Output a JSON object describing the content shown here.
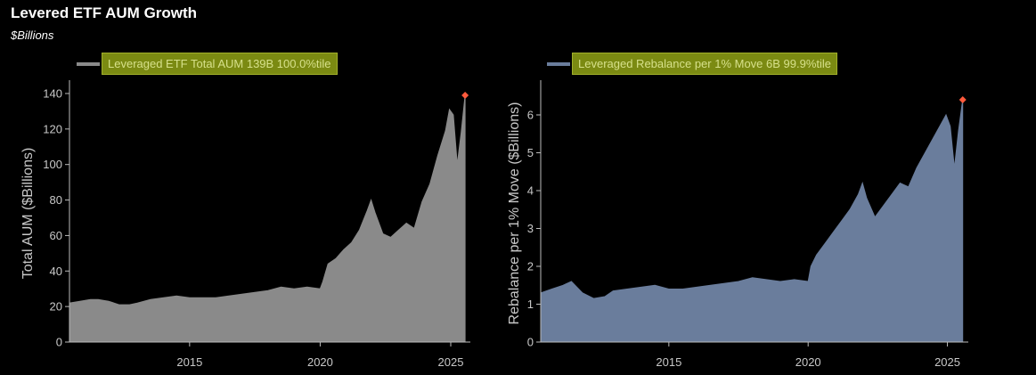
{
  "title": "Levered ETF AUM Growth",
  "subtitle": "$Billions",
  "chart_data": [
    {
      "type": "area",
      "legend": "Leveraged ETF Total AUM 139B 100.0%tile",
      "ylabel": "Total AUM ($Billions)",
      "xlabel": "",
      "color": "#8a8a8a",
      "marker_color": "#ff5a3c",
      "xlim": [
        2010.4,
        2025.75
      ],
      "ylim": [
        0,
        145
      ],
      "x_ticks": [
        2015,
        2020,
        2025
      ],
      "y_ticks": [
        0,
        20,
        40,
        60,
        80,
        100,
        120,
        140
      ],
      "last_point": [
        2025.55,
        139
      ],
      "series": [
        {
          "x": [
            2010.4,
            2010.8,
            2011.2,
            2011.5,
            2011.9,
            2012.3,
            2012.7,
            2013.0,
            2013.5,
            2014.0,
            2014.5,
            2015.0,
            2015.5,
            2016.0,
            2016.5,
            2017.0,
            2017.5,
            2018.0,
            2018.5,
            2019.0,
            2019.5,
            2020.0,
            2020.1,
            2020.3,
            2020.6,
            2020.9,
            2021.2,
            2021.5,
            2021.8,
            2021.95,
            2022.1,
            2022.4,
            2022.7,
            2023.0,
            2023.3,
            2023.6,
            2023.9,
            2024.2,
            2024.5,
            2024.8,
            2024.95,
            2025.1,
            2025.25,
            2025.4,
            2025.55
          ],
          "values": [
            22,
            23,
            24,
            24,
            23,
            21,
            21,
            22,
            24,
            25,
            26,
            25,
            25,
            25,
            26,
            27,
            28,
            29,
            31,
            30,
            31,
            30,
            34,
            44,
            47,
            52,
            56,
            63,
            74,
            80,
            73,
            61,
            59,
            63,
            67,
            64,
            79,
            89,
            105,
            119,
            131,
            128,
            100,
            118,
            139
          ]
        }
      ]
    },
    {
      "type": "area",
      "legend": "Leveraged Rebalance per 1% Move 6B 99.9%tile",
      "ylabel": "Rebalance per 1% Move ($Billions)",
      "xlabel": "",
      "color": "#6a7d9c",
      "marker_color": "#ff5a3c",
      "xlim": [
        2010.4,
        2025.75
      ],
      "ylim": [
        0,
        6.8
      ],
      "x_ticks": [
        2015,
        2020,
        2025
      ],
      "y_ticks": [
        0,
        1,
        2,
        3,
        4,
        5,
        6
      ],
      "last_point": [
        2025.55,
        6.4
      ],
      "series": [
        {
          "x": [
            2010.4,
            2010.8,
            2011.2,
            2011.5,
            2011.9,
            2012.3,
            2012.7,
            2013.0,
            2013.5,
            2014.0,
            2014.5,
            2015.0,
            2015.5,
            2016.0,
            2016.5,
            2017.0,
            2017.5,
            2018.0,
            2018.5,
            2019.0,
            2019.5,
            2020.0,
            2020.1,
            2020.3,
            2020.6,
            2020.9,
            2021.2,
            2021.5,
            2021.8,
            2021.95,
            2022.1,
            2022.4,
            2022.7,
            2023.0,
            2023.3,
            2023.6,
            2023.9,
            2024.2,
            2024.5,
            2024.8,
            2024.95,
            2025.1,
            2025.25,
            2025.4,
            2025.55
          ],
          "values": [
            1.3,
            1.4,
            1.5,
            1.6,
            1.3,
            1.15,
            1.2,
            1.35,
            1.4,
            1.45,
            1.5,
            1.4,
            1.4,
            1.45,
            1.5,
            1.55,
            1.6,
            1.7,
            1.65,
            1.6,
            1.65,
            1.6,
            2.0,
            2.3,
            2.6,
            2.9,
            3.2,
            3.5,
            3.9,
            4.2,
            3.8,
            3.3,
            3.6,
            3.9,
            4.2,
            4.1,
            4.6,
            5.0,
            5.4,
            5.8,
            6.0,
            5.7,
            4.6,
            5.6,
            6.4
          ]
        }
      ]
    }
  ]
}
